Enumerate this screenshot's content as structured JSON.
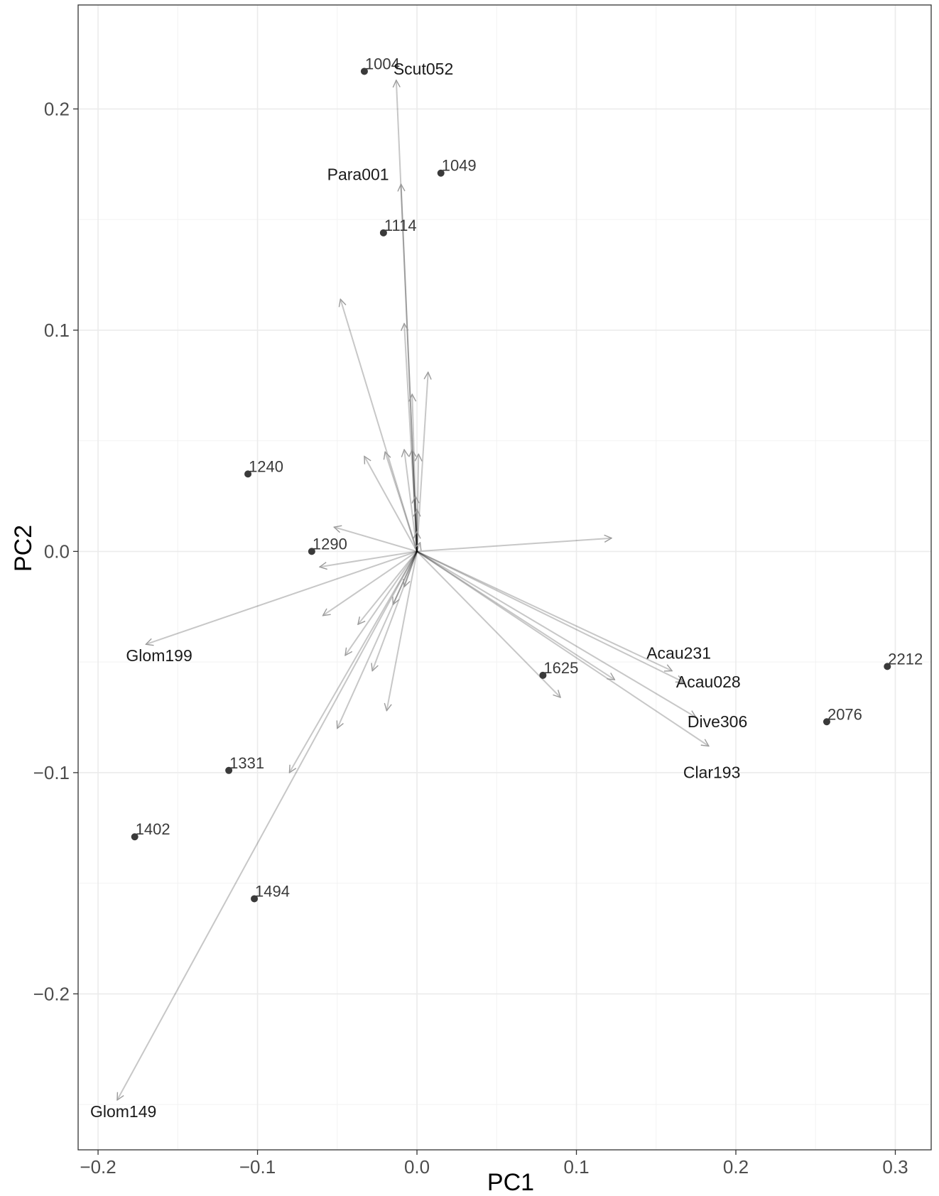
{
  "chart_data": {
    "type": "scatter",
    "xlabel": "PC1",
    "ylabel": "PC2",
    "xlim": [
      -0.2125,
      0.3225
    ],
    "ylim": [
      -0.2705,
      0.247
    ],
    "x_ticks": [
      -0.2,
      -0.1,
      0.0,
      0.1,
      0.2,
      0.3
    ],
    "x_tick_labels": [
      "−0.2",
      "−0.1",
      "0.0",
      "0.1",
      "0.2",
      "0.3"
    ],
    "y_ticks": [
      0.2,
      0.1,
      0.0,
      -0.1,
      -0.2
    ],
    "y_tick_labels": [
      "0.2",
      "0.1",
      "0.0",
      "−0.1",
      "−0.2"
    ],
    "grid": true,
    "points": [
      {
        "label": "1004",
        "x": -0.033,
        "y": 0.217
      },
      {
        "label": "1049",
        "x": 0.015,
        "y": 0.171
      },
      {
        "label": "1114",
        "x": -0.021,
        "y": 0.144
      },
      {
        "label": "1240",
        "x": -0.106,
        "y": 0.035
      },
      {
        "label": "1290",
        "x": -0.066,
        "y": 0.0
      },
      {
        "label": "1625",
        "x": 0.079,
        "y": -0.056
      },
      {
        "label": "2212",
        "x": 0.295,
        "y": -0.052
      },
      {
        "label": "2076",
        "x": 0.257,
        "y": -0.077
      },
      {
        "label": "1331",
        "x": -0.118,
        "y": -0.099
      },
      {
        "label": "1402",
        "x": -0.177,
        "y": -0.129
      },
      {
        "label": "1494",
        "x": -0.102,
        "y": -0.157
      }
    ],
    "loadings": [
      {
        "label": "Scut052",
        "x": -0.013,
        "y": 0.213
      },
      {
        "label": "Para001",
        "x": -0.01,
        "y": 0.166
      },
      {
        "label": "Glom199",
        "x": -0.17,
        "y": -0.042
      },
      {
        "label": "Glom149",
        "x": -0.188,
        "y": -0.248
      },
      {
        "label": "Acau231",
        "x": 0.16,
        "y": -0.054
      },
      {
        "label": "Acau028",
        "x": 0.167,
        "y": -0.059
      },
      {
        "label": "Dive306",
        "x": 0.175,
        "y": -0.075
      },
      {
        "label": "Clar193",
        "x": 0.183,
        "y": -0.088
      },
      {
        "label": "",
        "x": -0.048,
        "y": 0.114
      },
      {
        "label": "",
        "x": -0.008,
        "y": 0.103
      },
      {
        "label": "",
        "x": 0.007,
        "y": 0.081
      },
      {
        "label": "",
        "x": -0.003,
        "y": 0.071
      },
      {
        "label": "",
        "x": -0.033,
        "y": 0.043
      },
      {
        "label": "",
        "x": -0.02,
        "y": 0.045
      },
      {
        "label": "",
        "x": -0.008,
        "y": 0.046
      },
      {
        "label": "",
        "x": -0.003,
        "y": 0.046
      },
      {
        "label": "",
        "x": 0.001,
        "y": 0.044
      },
      {
        "label": "",
        "x": -0.001,
        "y": 0.025
      },
      {
        "label": "",
        "x": 0.0,
        "y": 0.019
      },
      {
        "label": "",
        "x": 0.0,
        "y": 0.009
      },
      {
        "label": "",
        "x": 0.002,
        "y": 0.004
      },
      {
        "label": "",
        "x": 0.122,
        "y": 0.006
      },
      {
        "label": "",
        "x": -0.052,
        "y": 0.011
      },
      {
        "label": "",
        "x": -0.061,
        "y": -0.007
      },
      {
        "label": "",
        "x": -0.059,
        "y": -0.029
      },
      {
        "label": "",
        "x": -0.037,
        "y": -0.033
      },
      {
        "label": "",
        "x": -0.045,
        "y": -0.047
      },
      {
        "label": "",
        "x": -0.05,
        "y": -0.08
      },
      {
        "label": "",
        "x": -0.08,
        "y": -0.1
      },
      {
        "label": "",
        "x": -0.028,
        "y": -0.054
      },
      {
        "label": "",
        "x": -0.019,
        "y": -0.072
      },
      {
        "label": "",
        "x": -0.015,
        "y": -0.024
      },
      {
        "label": "",
        "x": -0.008,
        "y": -0.016
      },
      {
        "label": "",
        "x": 0.09,
        "y": -0.066
      },
      {
        "label": "",
        "x": 0.124,
        "y": -0.058
      }
    ]
  }
}
